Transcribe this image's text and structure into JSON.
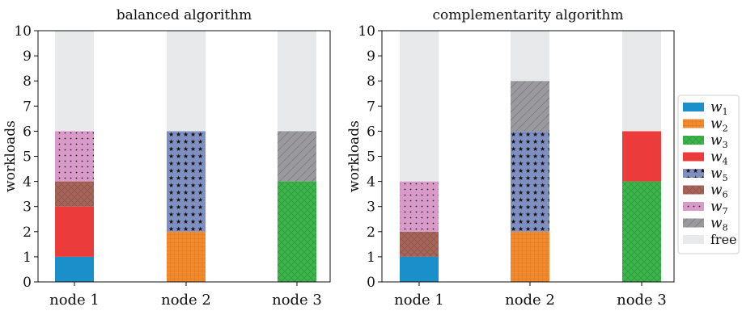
{
  "chart_data": [
    {
      "type": "bar",
      "stacked": true,
      "title": "balanced algorithm",
      "xlabel": "",
      "ylabel": "workloads",
      "ylim": [
        0,
        10
      ],
      "yticks": [
        "0",
        "1",
        "2",
        "3",
        "4",
        "5",
        "6",
        "7",
        "8",
        "9",
        "10"
      ],
      "categories": [
        "node 1",
        "node 2",
        "node 3"
      ],
      "series": [
        {
          "name": "w1",
          "values": [
            1,
            0,
            0
          ]
        },
        {
          "name": "w2",
          "values": [
            0,
            2,
            0
          ]
        },
        {
          "name": "w3",
          "values": [
            0,
            0,
            4
          ]
        },
        {
          "name": "w4",
          "values": [
            2,
            0,
            0
          ]
        },
        {
          "name": "w5",
          "values": [
            0,
            4,
            0
          ]
        },
        {
          "name": "w6",
          "values": [
            1,
            0,
            0
          ]
        },
        {
          "name": "w7",
          "values": [
            2,
            0,
            0
          ]
        },
        {
          "name": "w8",
          "values": [
            0,
            0,
            2
          ]
        },
        {
          "name": "free",
          "values": [
            4,
            4,
            4
          ]
        }
      ]
    },
    {
      "type": "bar",
      "stacked": true,
      "title": "complementarity algorithm",
      "xlabel": "",
      "ylabel": "workloads",
      "ylim": [
        0,
        10
      ],
      "yticks": [
        "0",
        "1",
        "2",
        "3",
        "4",
        "5",
        "6",
        "7",
        "8",
        "9",
        "10"
      ],
      "categories": [
        "node 1",
        "node 2",
        "node 3"
      ],
      "series": [
        {
          "name": "w1",
          "values": [
            1,
            0,
            0
          ]
        },
        {
          "name": "w2",
          "values": [
            0,
            2,
            0
          ]
        },
        {
          "name": "w3",
          "values": [
            0,
            0,
            4
          ]
        },
        {
          "name": "w4",
          "values": [
            0,
            0,
            2
          ]
        },
        {
          "name": "w5",
          "values": [
            0,
            4,
            0
          ]
        },
        {
          "name": "w6",
          "values": [
            1,
            0,
            0
          ]
        },
        {
          "name": "w7",
          "values": [
            2,
            0,
            0
          ]
        },
        {
          "name": "w8",
          "values": [
            0,
            2,
            0
          ]
        },
        {
          "name": "free",
          "values": [
            6,
            2,
            4
          ]
        }
      ]
    }
  ],
  "legend": {
    "placement": "right",
    "entries": [
      {
        "key": "w1",
        "base": "w",
        "sub": "1",
        "color": "#1a8fc9",
        "pattern": "none"
      },
      {
        "key": "w2",
        "base": "w",
        "sub": "2",
        "color": "#f28a2e",
        "pattern": "grid"
      },
      {
        "key": "w3",
        "base": "w",
        "sub": "3",
        "color": "#3cb54a",
        "pattern": "cross"
      },
      {
        "key": "w4",
        "base": "w",
        "sub": "4",
        "color": "#ec3b3b",
        "pattern": "none"
      },
      {
        "key": "w5",
        "base": "w",
        "sub": "5",
        "color": "#7f8fbf",
        "pattern": "stars"
      },
      {
        "key": "w6",
        "base": "w",
        "sub": "6",
        "color": "#a8655a",
        "pattern": "cross"
      },
      {
        "key": "w7",
        "base": "w",
        "sub": "7",
        "color": "#d89ac8",
        "pattern": "dots"
      },
      {
        "key": "w8",
        "base": "w",
        "sub": "8",
        "color": "#9a9a9e",
        "pattern": "diag"
      },
      {
        "key": "free",
        "base": "free",
        "sub": "",
        "color": "#e8e9eb",
        "pattern": "none"
      }
    ]
  }
}
